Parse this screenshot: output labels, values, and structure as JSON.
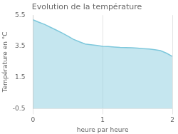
{
  "chart_data": {
    "type": "area",
    "title": "Evolution de la température",
    "x_label": "heure par heure",
    "y_label": "Température en °C",
    "x": [
      0.0,
      0.08,
      0.17,
      0.25,
      0.33,
      0.42,
      0.5,
      0.58,
      0.67,
      0.75,
      0.83,
      0.92,
      1.0,
      1.08,
      1.17,
      1.25,
      1.33,
      1.42,
      1.5,
      1.58,
      1.67,
      1.75,
      1.83,
      1.92,
      2.0
    ],
    "values": [
      5.2,
      5.05,
      4.9,
      4.72,
      4.55,
      4.35,
      4.15,
      3.95,
      3.78,
      3.65,
      3.6,
      3.55,
      3.5,
      3.48,
      3.45,
      3.43,
      3.42,
      3.4,
      3.38,
      3.35,
      3.32,
      3.28,
      3.22,
      3.05,
      2.85
    ],
    "color": "#7ec8dc",
    "xlim": [
      0,
      2
    ],
    "xticks": [
      0,
      1,
      2
    ],
    "ylim": [
      -0.5,
      5.5
    ],
    "yticks": [
      -0.5,
      1.5,
      3.5,
      5.5
    ],
    "grid": "x"
  }
}
